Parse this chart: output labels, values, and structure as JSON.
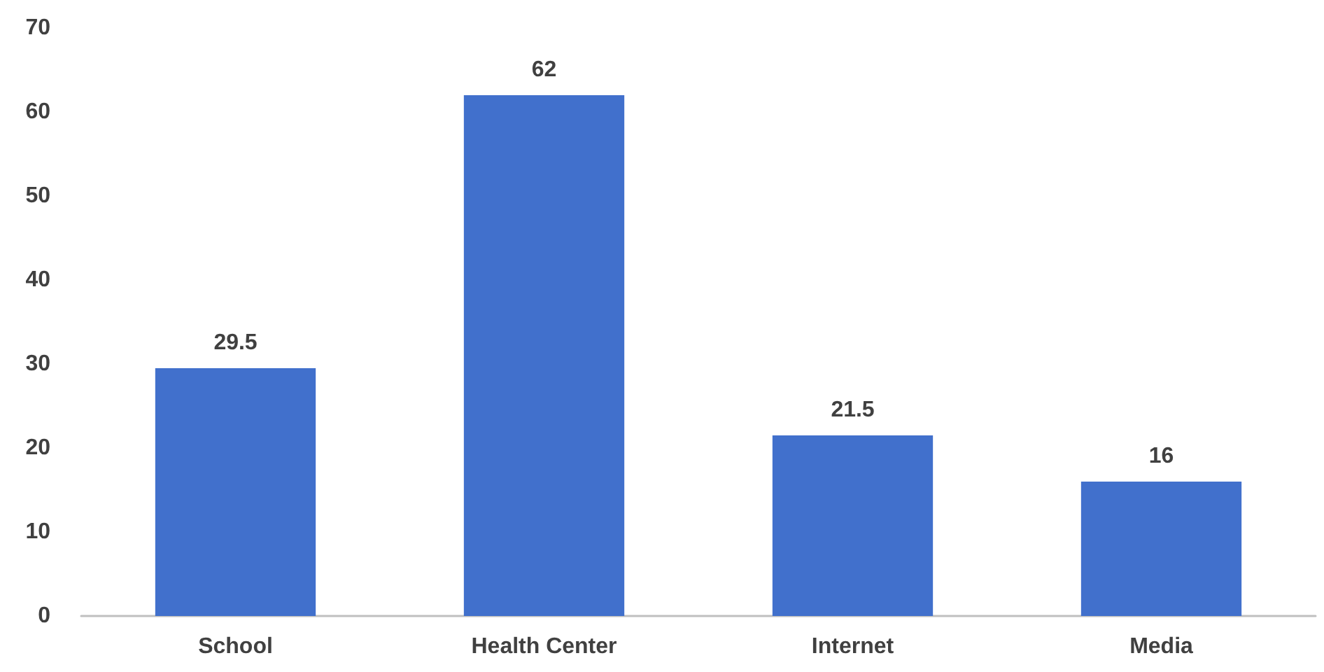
{
  "chart_data": {
    "type": "bar",
    "categories": [
      "School",
      "Health Center",
      "Internet",
      "Media"
    ],
    "values": [
      29.5,
      62,
      21.5,
      16
    ],
    "color": "#4170cc",
    "ylim": [
      0,
      70
    ],
    "yticks": [
      0,
      10,
      20,
      30,
      40,
      50,
      60,
      70
    ],
    "data_labels": true
  }
}
